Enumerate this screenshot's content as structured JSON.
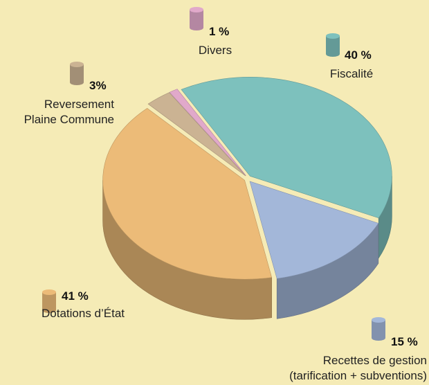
{
  "chart_data": {
    "type": "pie",
    "categories": [
      "Fiscalité",
      "Recettes de gestion\n(tarification + subventions)",
      "Dotations d’État",
      "Reversement\nPlaine Commune",
      "Divers"
    ],
    "values": [
      40,
      15,
      41,
      3,
      1
    ],
    "value_labels": [
      "40 %",
      "15 %",
      "41 %",
      "3%",
      "1 %"
    ],
    "colors": [
      "#7dc1bd",
      "#a3b7d9",
      "#ecbb78",
      "#cbb393",
      "#e1a9ca"
    ]
  }
}
